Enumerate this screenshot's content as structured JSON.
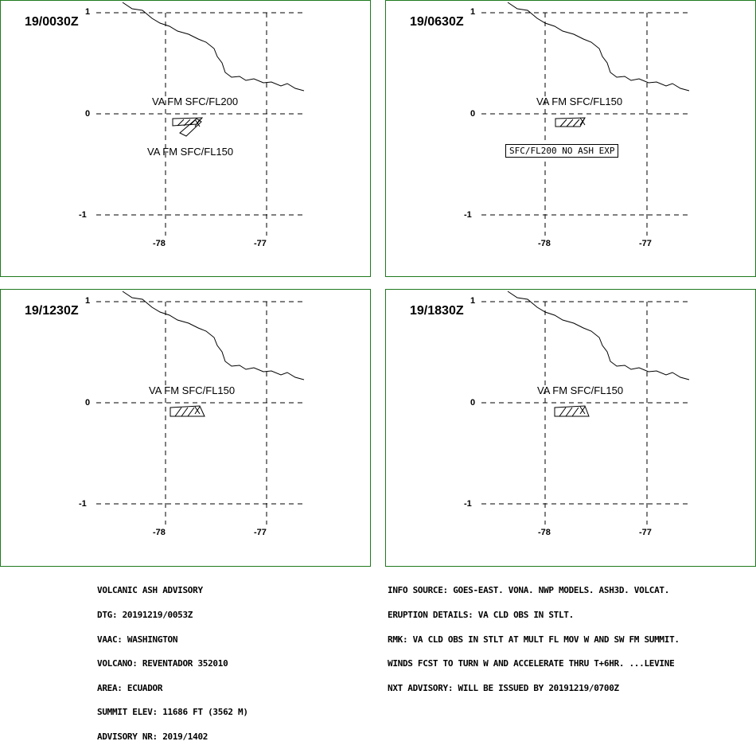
{
  "panels": [
    {
      "time": "19/0030Z",
      "labels": [
        "VA FM SFC/FL200",
        "VA FM SFC/FL150"
      ],
      "note": ""
    },
    {
      "time": "19/0630Z",
      "labels": [
        "VA FM SFC/FL150"
      ],
      "note": "SFC/FL200 NO ASH EXP"
    },
    {
      "time": "19/1230Z",
      "labels": [
        "VA FM SFC/FL150"
      ],
      "note": ""
    },
    {
      "time": "19/1830Z",
      "labels": [
        "VA FM SFC/FL150"
      ],
      "note": ""
    }
  ],
  "axis": {
    "lat_ticks": [
      "1",
      "0",
      "-1"
    ],
    "lon_ticks": [
      "-78",
      "-77"
    ]
  },
  "advisory_left": [
    "VOLCANIC ASH ADVISORY",
    "DTG: 20191219/0053Z",
    "VAAC: WASHINGTON",
    "VOLCANO: REVENTADOR 352010",
    "AREA: ECUADOR",
    "SUMMIT ELEV: 11686 FT (3562 M)",
    "ADVISORY NR: 2019/1402"
  ],
  "advisory_right": [
    "INFO SOURCE: GOES-EAST. VONA. NWP MODELS. ASH3D. VOLCAT.",
    "ERUPTION DETAILS: VA CLD OBS IN STLT.",
    "RMK: VA CLD OBS IN STLT AT MULT FL MOV W AND SW FM SUMMIT.",
    "WINDS FCST TO TURN W AND ACCELERATE THRU T+6HR. ...LEVINE",
    "NXT ADVISORY: WILL BE ISSUED BY 20191219/0700Z"
  ],
  "colors": {
    "frame": "#1f7a1f",
    "lines": "#000000"
  }
}
